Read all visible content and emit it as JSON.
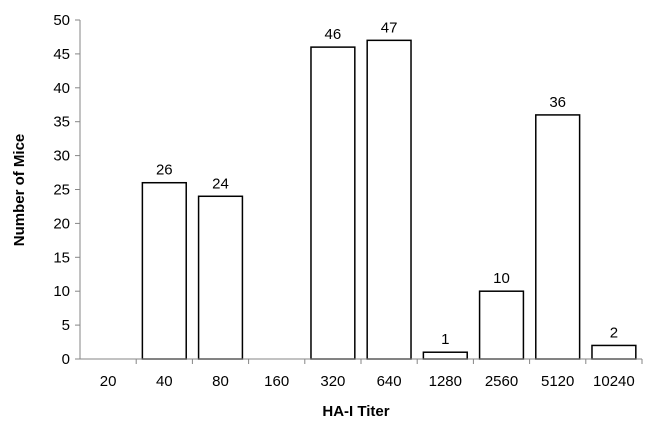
{
  "chart_data": {
    "type": "bar",
    "title": "",
    "xlabel": "HA-I Titer",
    "ylabel": "Number of Mice",
    "categories": [
      "20",
      "40",
      "80",
      "160",
      "320",
      "640",
      "1280",
      "2560",
      "5120",
      "10240"
    ],
    "values": [
      null,
      26,
      24,
      null,
      46,
      47,
      1,
      10,
      36,
      2
    ],
    "data_labels": [
      "",
      "26",
      "24",
      "",
      "46",
      "47",
      "1",
      "10",
      "36",
      "2"
    ],
    "ylim": [
      0,
      50
    ],
    "yticks": [
      "0",
      "5",
      "10",
      "15",
      "20",
      "25",
      "30",
      "35",
      "40",
      "45",
      "50"
    ],
    "grid": false,
    "legend": "none",
    "colors": {
      "bar_fill": "#ffffff",
      "bar_stroke": "#000000",
      "axis": "#868686"
    }
  }
}
